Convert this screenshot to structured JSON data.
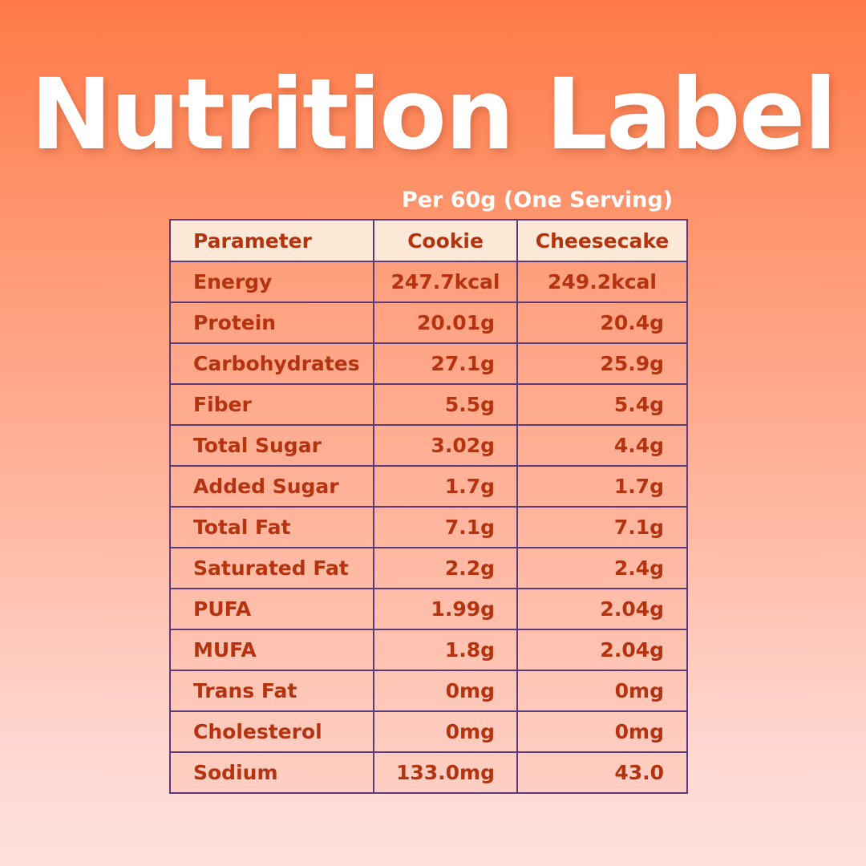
{
  "title": "Nutrition Label",
  "subtitle": "Per 60g (One Serving)",
  "table": {
    "headers": [
      "Parameter",
      "Cookie",
      "Cheesecake"
    ],
    "rows": [
      [
        "Energy",
        "247.7kcal",
        "249.2kcal"
      ],
      [
        "Protein",
        "20.01g",
        "20.4g"
      ],
      [
        "Carbohydrates",
        "27.1g",
        "25.9g"
      ],
      [
        "Fiber",
        "5.5g",
        "5.4g"
      ],
      [
        "Total Sugar",
        "3.02g",
        "4.4g"
      ],
      [
        "Added Sugar",
        "1.7g",
        "1.7g"
      ],
      [
        "Total Fat",
        "7.1g",
        "7.1g"
      ],
      [
        "Saturated Fat",
        "2.2g",
        "2.4g"
      ],
      [
        "PUFA",
        "1.99g",
        "2.04g"
      ],
      [
        "MUFA",
        "1.8g",
        "2.04g"
      ],
      [
        "Trans Fat",
        "0mg",
        "0mg"
      ],
      [
        "Cholesterol",
        "0mg",
        "0mg"
      ],
      [
        "Sodium",
        "133.0mg",
        "43.0"
      ]
    ]
  },
  "colors": {
    "text_accent": "#b5330f",
    "border": "#5b3b7a",
    "header_bg": "#fbe8d6",
    "title": "#ffffff"
  }
}
